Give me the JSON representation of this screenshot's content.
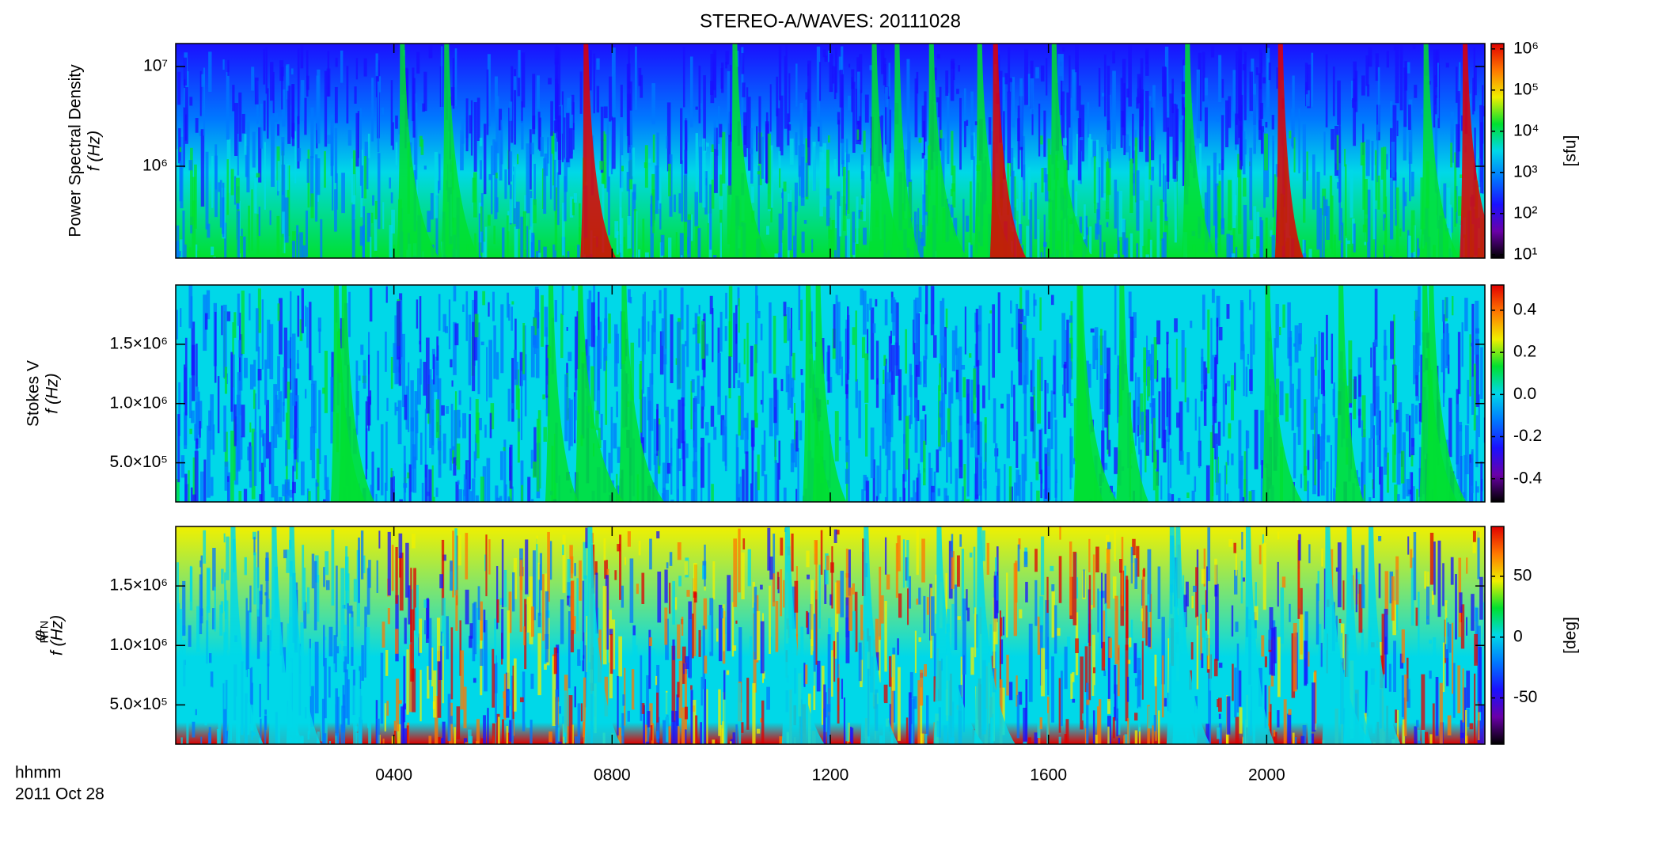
{
  "chart_data": [
    {
      "type": "heatmap",
      "title": "STEREO-A/WAVES: 20111028",
      "ylabel": "Power Spectral Density",
      "ylabel2": "f (Hz)",
      "ylog": true,
      "ylim": [
        120000,
        17000000
      ],
      "yticks": [
        {
          "value": 1000000,
          "label": "10⁶"
        },
        {
          "value": 10000000,
          "label": "10⁷"
        }
      ],
      "clog": true,
      "clim": [
        8.3,
        1350000
      ],
      "cticks": [
        {
          "value": 10,
          "label": "10¹"
        },
        {
          "value": 100,
          "label": "10²"
        },
        {
          "value": 1000,
          "label": "10³"
        },
        {
          "value": 10000,
          "label": "10⁴"
        },
        {
          "value": 100000,
          "label": "10⁵"
        },
        {
          "value": 1000000,
          "label": "10⁶"
        }
      ],
      "clabel": "[sfu]",
      "colormap": [
        "#000000",
        "#6a00a8",
        "#1a10ff",
        "#0078ff",
        "#00d8e8",
        "#00e030",
        "#f0f000",
        "#ff7800",
        "#e00000"
      ]
    },
    {
      "type": "heatmap",
      "ylabel": "Stokes V",
      "ylabel2": "f (Hz)",
      "ylog": false,
      "ylim": [
        170000,
        2000000
      ],
      "yticks": [
        {
          "value": 500000,
          "label": "5.0×10⁵"
        },
        {
          "value": 1000000,
          "label": "1.0×10⁶"
        },
        {
          "value": 1500000,
          "label": "1.5×10⁶"
        }
      ],
      "clog": false,
      "clim": [
        -0.51,
        0.52
      ],
      "cticks": [
        -0.4,
        -0.2,
        {
          "value": 0,
          "label": "0.0"
        },
        0.2,
        0.4
      ],
      "colormap": [
        "#000000",
        "#6a00a8",
        "#1a10ff",
        "#0078ff",
        "#00d8e8",
        "#00e030",
        "#f0f000",
        "#ff7800",
        "#e00000"
      ]
    },
    {
      "type": "heatmap",
      "ylabel": "φ",
      "ylabel_sub": "RTN",
      "ylabel2": "f (Hz)",
      "ylog": false,
      "ylim": [
        170000,
        2000000
      ],
      "yticks": [
        {
          "value": 500000,
          "label": "5.0×10⁵"
        },
        {
          "value": 1000000,
          "label": "1.0×10⁶"
        },
        {
          "value": 1500000,
          "label": "1.5×10⁶"
        }
      ],
      "clog": false,
      "clim": [
        -88,
        91
      ],
      "cticks": [
        -50,
        0,
        50
      ],
      "clabel": "[deg]",
      "colormap": [
        "#000000",
        "#6a00a8",
        "#1a10ff",
        "#0078ff",
        "#00d8e8",
        "#00e030",
        "#f0f000",
        "#ff7800",
        "#e00000"
      ],
      "xlim": [
        0,
        24
      ],
      "xticks": [
        {
          "value": 4,
          "label": "0400"
        },
        {
          "value": 8,
          "label": "0800"
        },
        {
          "value": 12,
          "label": "1200"
        },
        {
          "value": 16,
          "label": "1600"
        },
        {
          "value": 20,
          "label": "2000"
        }
      ],
      "xlabel": "hhmm",
      "date": "2011 Oct 28"
    }
  ]
}
